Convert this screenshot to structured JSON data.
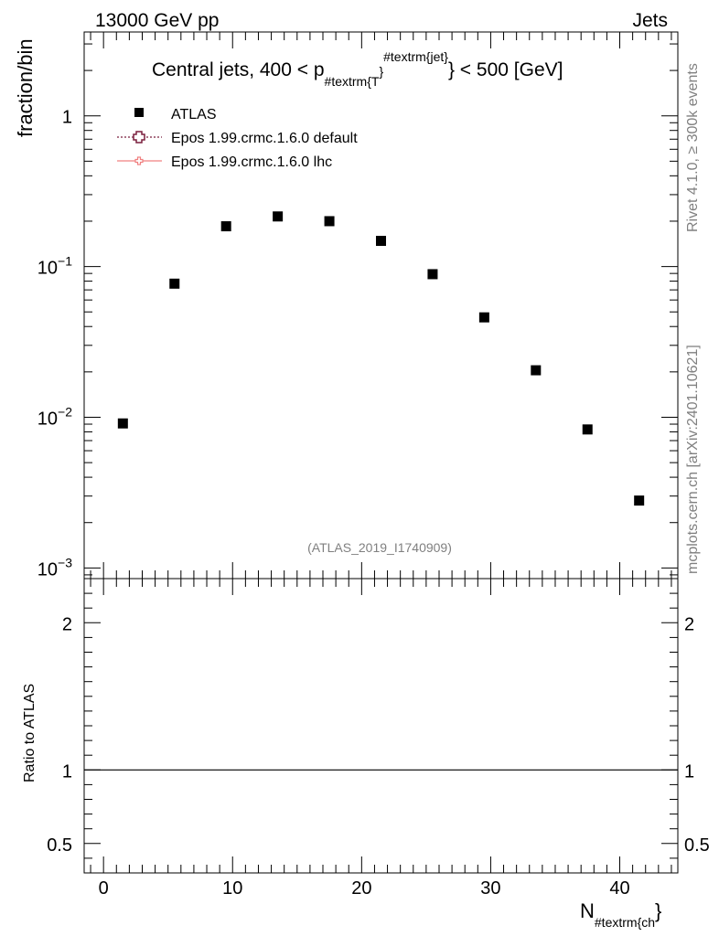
{
  "header": {
    "left": "13000 GeV pp",
    "right": "Jets"
  },
  "side_labels": {
    "top": "Rivet 4.1.0, ≥ 300k events",
    "bottom": "mcplots.cern.ch [arXiv:2401.10621]"
  },
  "chart_data": [
    {
      "type": "scatter",
      "panel": "main",
      "title": {
        "prefix": "Central jets, 400 < p",
        "sub": "#textrm{T",
        "mid": "}",
        "sup": "#textrm{jet}",
        "suffix": "} < 500 [GeV]"
      },
      "ylabel": "fraction/bin",
      "yscale": "log",
      "ylim": [
        0.00085,
        3.6
      ],
      "xlim": [
        -1.5,
        44.5
      ],
      "y_tick_labels": [
        {
          "value": 1,
          "base": "1",
          "exp": ""
        },
        {
          "value": 0.1,
          "base": "10",
          "exp": "−1"
        },
        {
          "value": 0.01,
          "base": "10",
          "exp": "−2"
        },
        {
          "value": 0.001,
          "base": "10",
          "exp": "−3"
        }
      ],
      "watermark": "(ATLAS_2019_I1740909)",
      "legend": {
        "placement": "top-left",
        "entries": [
          {
            "label": "ATLAS",
            "marker": "square",
            "color": "#000000"
          },
          {
            "label": "Epos 1.99.crmc.1.6.0 default",
            "marker": "open-cross",
            "line": "dotted",
            "color": "#7a1f3d"
          },
          {
            "label": "Epos 1.99.crmc.1.6.0 lhc",
            "marker": "open-cross-small",
            "line": "solid",
            "color": "#f08080"
          }
        ]
      },
      "series": [
        {
          "name": "ATLAS",
          "x": [
            1.5,
            5.5,
            9.5,
            13.5,
            17.5,
            21.5,
            25.5,
            29.5,
            33.5,
            37.5,
            41.5
          ],
          "y": [
            0.0091,
            0.077,
            0.185,
            0.215,
            0.2,
            0.148,
            0.089,
            0.046,
            0.0205,
            0.0083,
            0.0028
          ]
        }
      ]
    },
    {
      "type": "line",
      "panel": "ratio",
      "ylabel": "Ratio to ATLAS",
      "xlabel": {
        "base": "N",
        "sub": "#textrm{ch",
        "suffix": "}"
      },
      "xlim": [
        -1.5,
        44.5
      ],
      "ylim": [
        0.3,
        2.3
      ],
      "x_ticks": [
        0,
        10,
        20,
        30,
        40
      ],
      "y_tick_labels": [
        "2",
        "1",
        "0.5"
      ],
      "y_tick_values": [
        2,
        1,
        0.5
      ],
      "reference_line": 1
    }
  ]
}
